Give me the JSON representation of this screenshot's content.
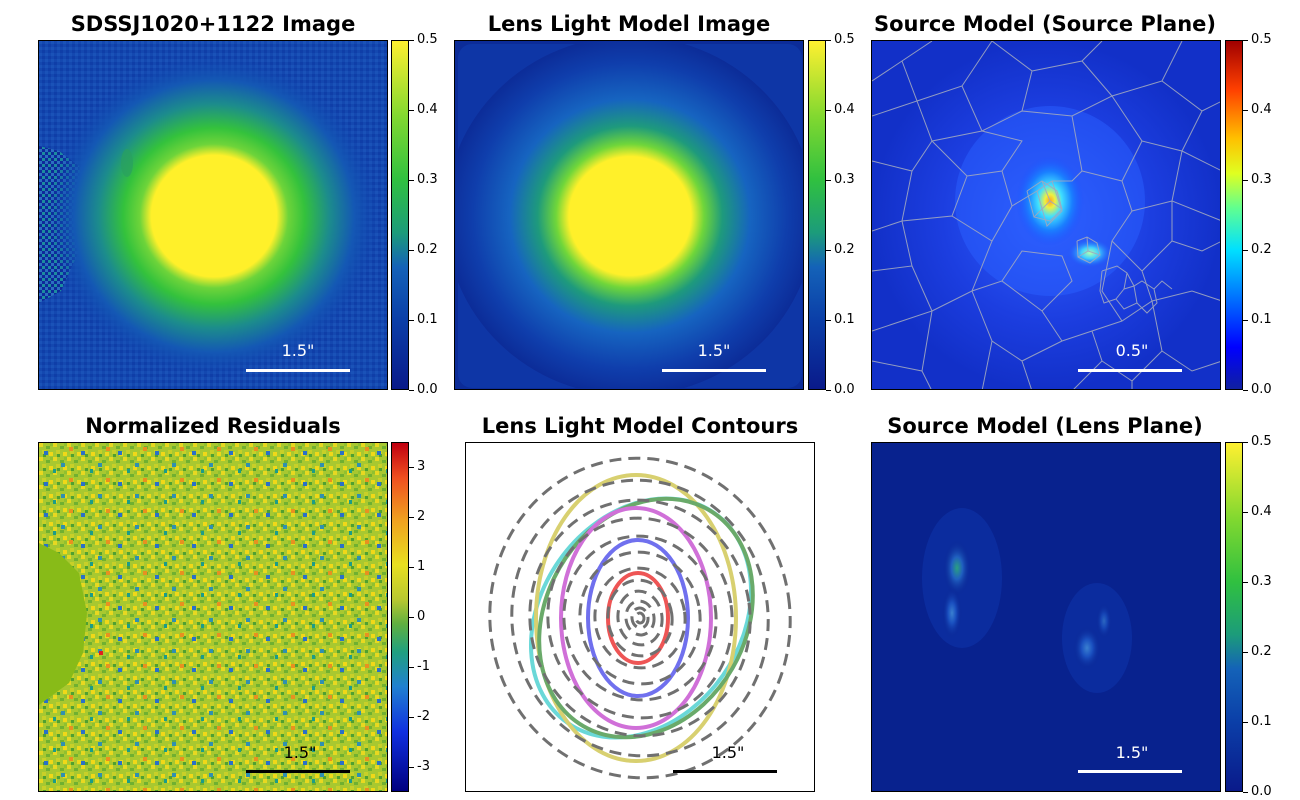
{
  "panels": [
    {
      "id": "data-image",
      "title": "SDSSJ1020+1122 Image",
      "scale_label": "1.5\"",
      "scale_color": "white"
    },
    {
      "id": "lens-light-model",
      "title": "Lens Light Model Image",
      "scale_label": "1.5\"",
      "scale_color": "white"
    },
    {
      "id": "source-plane",
      "title": "Source Model (Source Plane)",
      "scale_label": "0.5\"",
      "scale_color": "white"
    },
    {
      "id": "residuals",
      "title": "Normalized Residuals",
      "scale_label": "1.5\"",
      "scale_color": "black"
    },
    {
      "id": "contours",
      "title": "Lens Light Model Contours",
      "scale_label": "1.5\"",
      "scale_color": "black"
    },
    {
      "id": "lens-plane",
      "title": "Source Model (Lens Plane)",
      "scale_label": "1.5\"",
      "scale_color": "white"
    }
  ],
  "colorbars": {
    "standard": [
      "0.0",
      "0.1",
      "0.2",
      "0.3",
      "0.4",
      "0.5"
    ],
    "residual": [
      "-3",
      "-2",
      "-1",
      "0",
      "1",
      "2",
      "3"
    ]
  },
  "colors": {
    "contour_dashed": "#707070",
    "contour_red": "#ee5555",
    "contour_blue": "#7070ee",
    "contour_magenta": "#d070d8",
    "contour_yellow": "#d8d070",
    "contour_green": "#6aaa6a",
    "contour_cyan": "#6ad8d8"
  },
  "chart_data": [
    {
      "type": "heatmap",
      "title": "SDSSJ1020+1122 Image",
      "colorbar_range": [
        0.0,
        0.5
      ],
      "colorbar_ticks": [
        0.0,
        0.1,
        0.2,
        0.3,
        0.4,
        0.5
      ],
      "scale_bar": "1.5\""
    },
    {
      "type": "heatmap",
      "title": "Lens Light Model Image",
      "colorbar_range": [
        0.0,
        0.5
      ],
      "colorbar_ticks": [
        0.0,
        0.1,
        0.2,
        0.3,
        0.4,
        0.5
      ],
      "scale_bar": "1.5\""
    },
    {
      "type": "heatmap",
      "title": "Source Model (Source Plane)",
      "colorbar_range": [
        0.0,
        0.5
      ],
      "colorbar_ticks": [
        0.0,
        0.1,
        0.2,
        0.3,
        0.4,
        0.5
      ],
      "scale_bar": "0.5\""
    },
    {
      "type": "heatmap",
      "title": "Normalized Residuals",
      "colorbar_range": [
        -3.5,
        3.5
      ],
      "colorbar_ticks": [
        -3,
        -2,
        -1,
        0,
        1,
        2,
        3
      ],
      "scale_bar": "1.5\""
    },
    {
      "type": "contour",
      "title": "Lens Light Model Contours",
      "scale_bar": "1.5\""
    },
    {
      "type": "heatmap",
      "title": "Source Model (Lens Plane)",
      "colorbar_range": [
        0.0,
        0.5
      ],
      "colorbar_ticks": [
        0.0,
        0.1,
        0.2,
        0.3,
        0.4,
        0.5
      ],
      "scale_bar": "1.5\""
    }
  ]
}
